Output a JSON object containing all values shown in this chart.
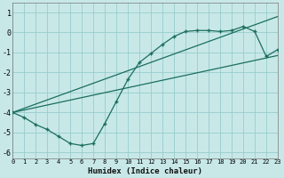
{
  "xlabel": "Humidex (Indice chaleur)",
  "bg_color": "#c8e8e8",
  "grid_color": "#99cccc",
  "line_color": "#1a6e5e",
  "xlim": [
    0,
    23
  ],
  "ylim": [
    -6.3,
    1.5
  ],
  "yticks": [
    1,
    0,
    -1,
    -2,
    -3,
    -4,
    -5,
    -6
  ],
  "xticks": [
    0,
    1,
    2,
    3,
    4,
    5,
    6,
    7,
    8,
    9,
    10,
    11,
    12,
    13,
    14,
    15,
    16,
    17,
    18,
    19,
    20,
    21,
    22,
    23
  ],
  "zigzag_x": [
    0,
    1,
    2,
    3,
    4,
    5,
    6,
    7,
    8,
    9,
    10,
    11,
    12,
    13,
    14,
    15,
    16,
    17,
    18,
    19,
    20,
    21,
    22,
    23
  ],
  "zigzag_y": [
    -4.0,
    -4.25,
    -4.6,
    -4.85,
    -5.2,
    -5.55,
    -5.65,
    -5.55,
    -4.55,
    -3.45,
    -2.35,
    -1.5,
    -1.05,
    -0.6,
    -0.2,
    0.05,
    0.1,
    0.1,
    0.05,
    0.1,
    0.3,
    0.05,
    -1.2,
    -0.85
  ],
  "line1_x": [
    0,
    23
  ],
  "line1_y": [
    -4.0,
    0.8
  ],
  "line2_x": [
    0,
    23
  ],
  "line2_y": [
    -4.0,
    -1.15
  ]
}
